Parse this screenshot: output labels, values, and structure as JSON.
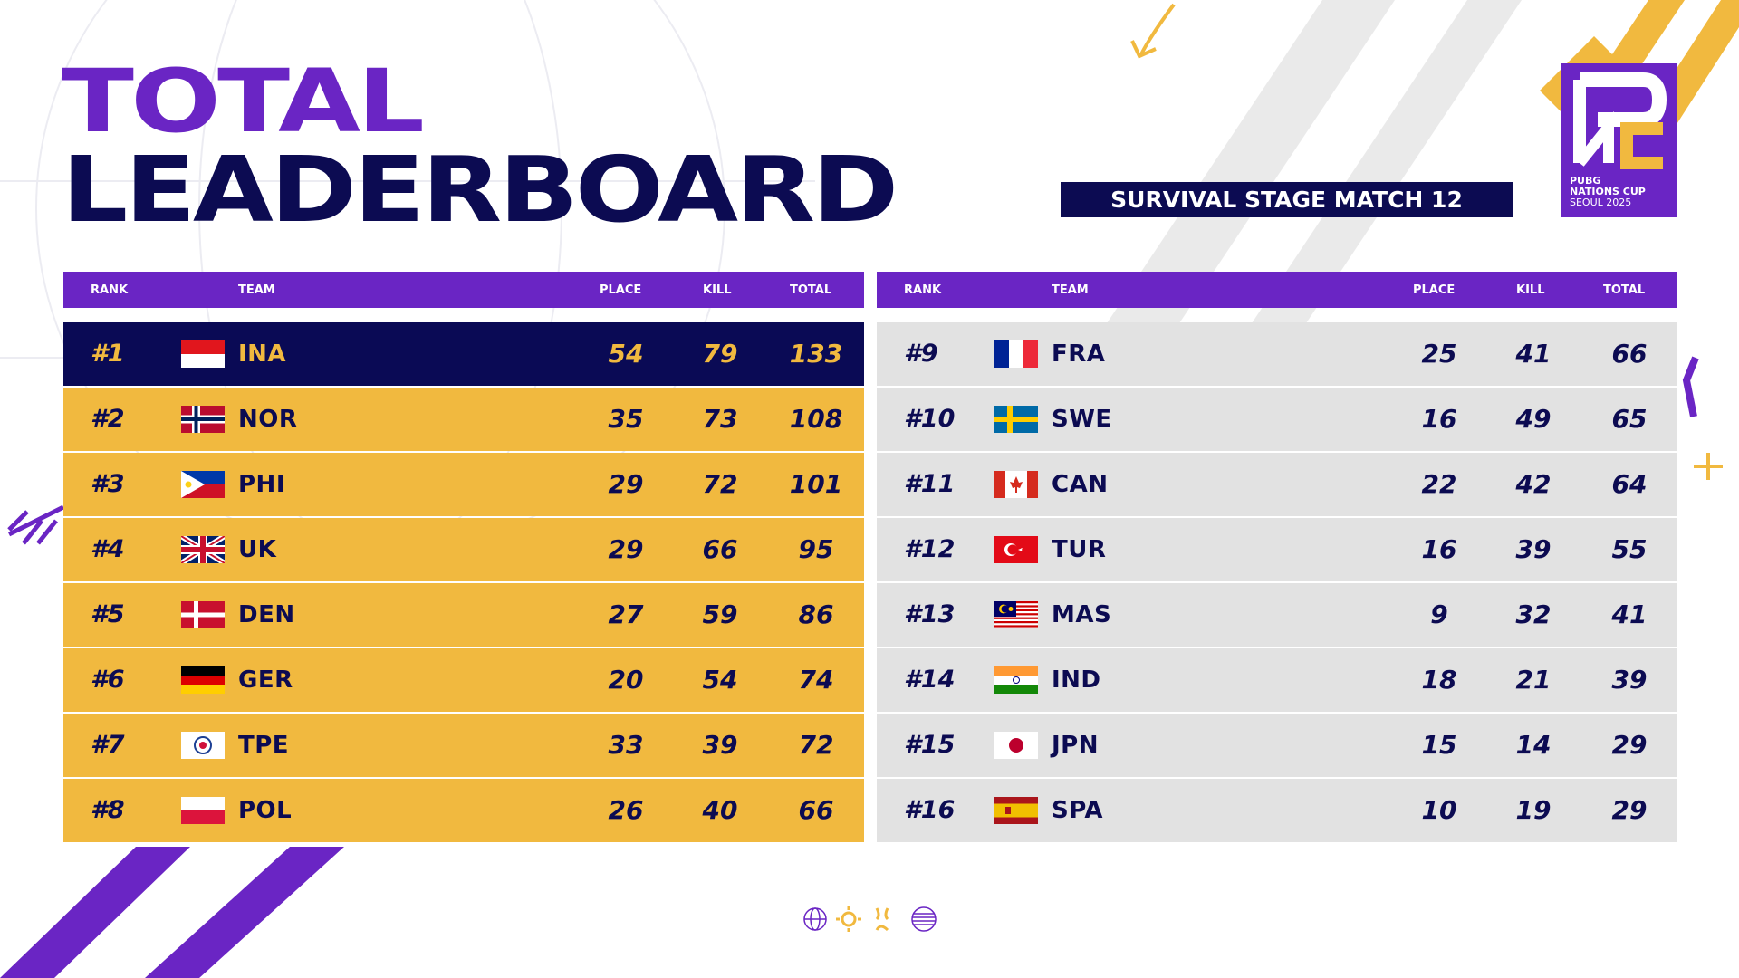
{
  "title": {
    "line1": "TOTAL",
    "line2": "LEADERBOARD"
  },
  "stage_label": "SURVIVAL STAGE MATCH 12",
  "logo": {
    "line1": "PUBG",
    "line2": "NATIONS CUP",
    "line3": "SEOUL 2025"
  },
  "columns": {
    "rank": "RANK",
    "team": "TEAM",
    "place": "PLACE",
    "kill": "KILL",
    "total": "TOTAL"
  },
  "colors": {
    "purple": "#6a25c4",
    "navy": "#0c0b52",
    "gold": "#f1b93f",
    "grey": "#e2e2e2"
  },
  "left_rows": [
    {
      "rank": "#1",
      "team": "INA",
      "place": "54",
      "kill": "79",
      "total": "133",
      "flag": "ina"
    },
    {
      "rank": "#2",
      "team": "NOR",
      "place": "35",
      "kill": "73",
      "total": "108",
      "flag": "nor"
    },
    {
      "rank": "#3",
      "team": "PHI",
      "place": "29",
      "kill": "72",
      "total": "101",
      "flag": "phi"
    },
    {
      "rank": "#4",
      "team": "UK",
      "place": "29",
      "kill": "66",
      "total": "95",
      "flag": "uk"
    },
    {
      "rank": "#5",
      "team": "DEN",
      "place": "27",
      "kill": "59",
      "total": "86",
      "flag": "den"
    },
    {
      "rank": "#6",
      "team": "GER",
      "place": "20",
      "kill": "54",
      "total": "74",
      "flag": "ger"
    },
    {
      "rank": "#7",
      "team": "TPE",
      "place": "33",
      "kill": "39",
      "total": "72",
      "flag": "tpe"
    },
    {
      "rank": "#8",
      "team": "POL",
      "place": "26",
      "kill": "40",
      "total": "66",
      "flag": "pol"
    }
  ],
  "right_rows": [
    {
      "rank": "#9",
      "team": "FRA",
      "place": "25",
      "kill": "41",
      "total": "66",
      "flag": "fra"
    },
    {
      "rank": "#10",
      "team": "SWE",
      "place": "16",
      "kill": "49",
      "total": "65",
      "flag": "swe"
    },
    {
      "rank": "#11",
      "team": "CAN",
      "place": "22",
      "kill": "42",
      "total": "64",
      "flag": "can"
    },
    {
      "rank": "#12",
      "team": "TUR",
      "place": "16",
      "kill": "39",
      "total": "55",
      "flag": "tur"
    },
    {
      "rank": "#13",
      "team": "MAS",
      "place": "9",
      "kill": "32",
      "total": "41",
      "flag": "mas"
    },
    {
      "rank": "#14",
      "team": "IND",
      "place": "18",
      "kill": "21",
      "total": "39",
      "flag": "ind"
    },
    {
      "rank": "#15",
      "team": "JPN",
      "place": "15",
      "kill": "14",
      "total": "29",
      "flag": "jpn"
    },
    {
      "rank": "#16",
      "team": "SPA",
      "place": "10",
      "kill": "19",
      "total": "29",
      "flag": "spa"
    }
  ]
}
